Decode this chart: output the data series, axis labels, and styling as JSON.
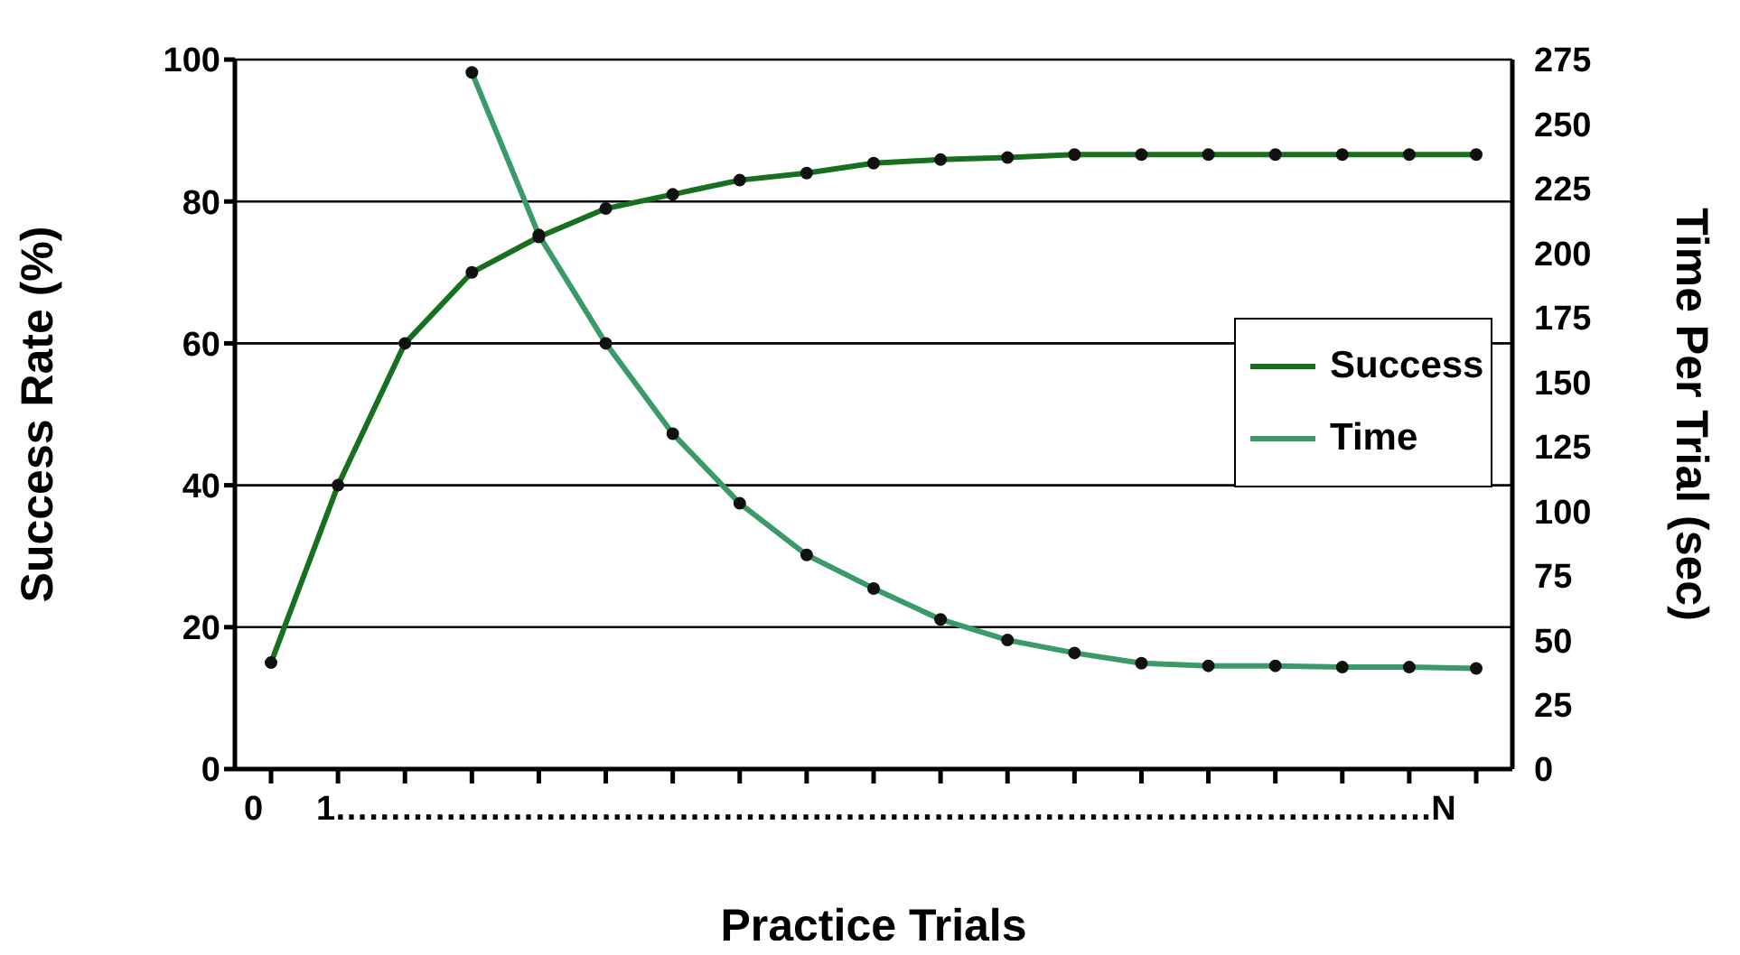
{
  "chart_data": {
    "type": "line",
    "xlabel": "Practice Trials",
    "ylabel": "Success Rate (%)",
    "y2label": "Time Per Trial (sec)",
    "categories": [
      null,
      null,
      null,
      null,
      null,
      null,
      null,
      null,
      null,
      null,
      null,
      null,
      null,
      null,
      null,
      null,
      null,
      null,
      null
    ],
    "series": [
      {
        "name": "Success",
        "color": "#16701f",
        "values": [
          15,
          40,
          60,
          70,
          75,
          79,
          81,
          83,
          84,
          85.4,
          85.9,
          86.2,
          86.6,
          86.6,
          86.6,
          86.6,
          86.6,
          86.6,
          86.6
        ]
      },
      {
        "name": "Time",
        "color": "#3a9a68",
        "axis": "y2",
        "values": [
          null,
          null,
          null,
          270,
          207,
          165,
          130,
          103,
          83,
          70,
          58,
          50,
          45,
          41,
          40,
          40,
          39.5,
          39.5,
          39
        ]
      }
    ],
    "ylim": [
      0,
      100
    ],
    "yticks": [
      0,
      20,
      40,
      60,
      80,
      100
    ],
    "y2lim": [
      0,
      275
    ],
    "y2ticks": [
      0,
      25,
      50,
      75,
      100,
      125,
      150,
      175,
      200,
      225,
      250,
      275
    ],
    "annotations": [
      "0",
      "1………………………………………………………………………………………N"
    ],
    "grid": "y",
    "legend": "right",
    "marker": "circle",
    "line_style": "solid"
  }
}
